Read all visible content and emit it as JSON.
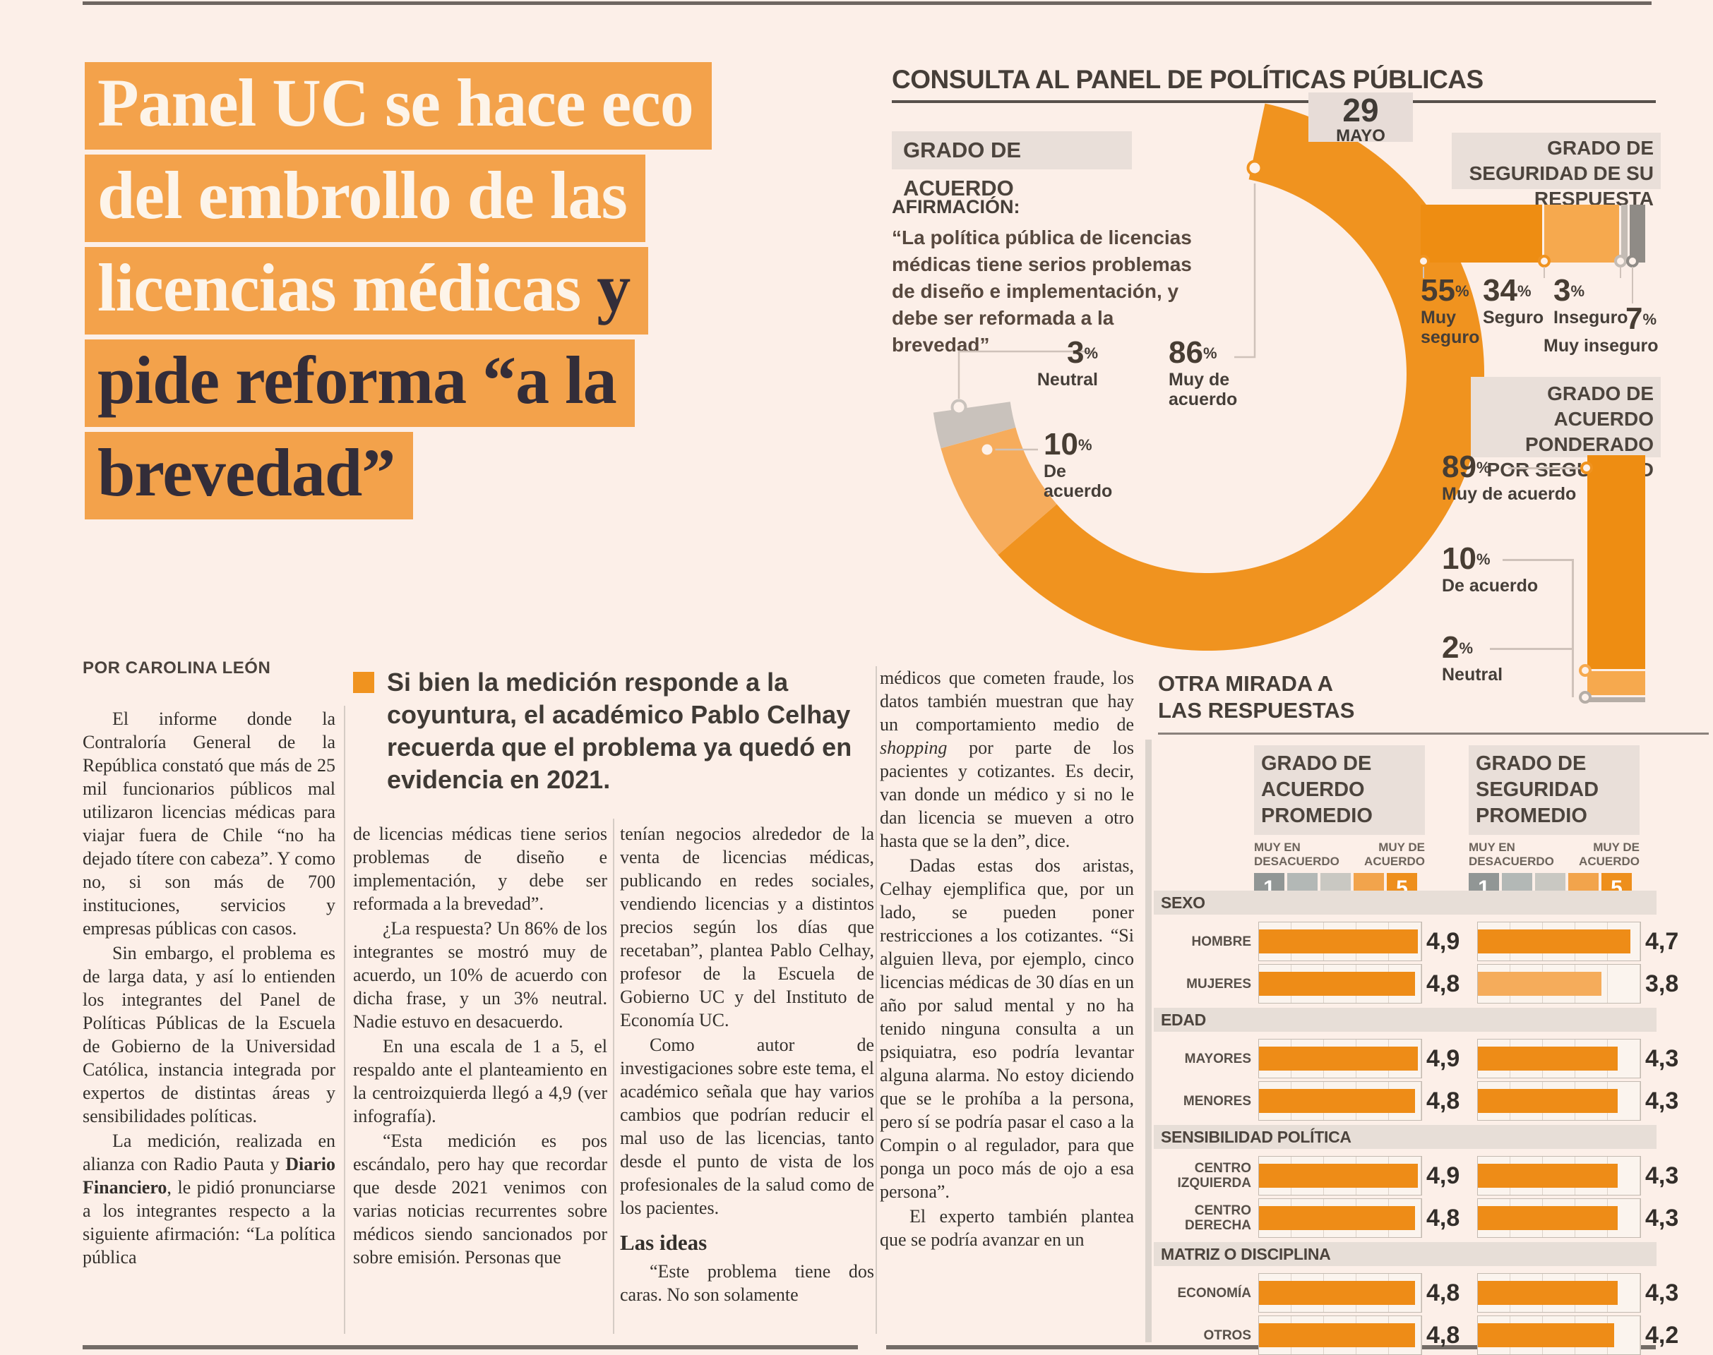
{
  "page": {
    "background": "#fcefe8",
    "accent_orange": "#f3a24b",
    "dark_ink": "#332d39"
  },
  "headline": {
    "l1": "Panel UC se hace eco",
    "l2": "del embrollo de las",
    "l3a": "licencias médicas",
    "l3b": " y",
    "l4": "pide reforma “a la",
    "l5": "brevedad”"
  },
  "byline": "POR CAROLINA LEÓN",
  "standfirst": {
    "text": "Si bien la medición responde a la coyuntura, el académico Pablo Celhay recuerda que el problema ya quedó en evidencia en 2021."
  },
  "article": {
    "col1": {
      "p1": "El informe donde la Contraloría General de la República constató que más de 25 mil funcionarios públicos mal utilizaron licencias médicas para viajar fuera de Chile “no ha dejado títere con cabeza”. Y como no, si son más de 700 instituciones, servicios y empresas públicas con casos.",
      "p2": "Sin embargo, el problema es de larga data, y así lo entienden los integrantes del Panel de Políticas Públicas de la Escuela de Gobierno de la Universidad Católica, instancia integrada por expertos de distintas áreas y sensibilidades políticas.",
      "p3a": "La medición, realizada en alianza con Radio Pauta y ",
      "p3b": "Diario Financiero",
      "p3c": ", le pidió pronunciarse a los integrantes respecto a la siguiente afirmación: “La política pública"
    },
    "col2": {
      "p1": "de licencias médicas tiene serios problemas de diseño e implementación, y debe ser reformada a la brevedad”.",
      "p2": "¿La respuesta? Un 86% de los integrantes se mostró muy de acuerdo, un 10% de acuerdo con dicha frase, y un 3% neutral. Nadie estuvo en desacuerdo.",
      "p3": "En una escala de 1 a 5, el respaldo ante el planteamiento en la centroizquierda llegó a 4,9 (ver infografía).",
      "p4": "“Esta medición es pos escándalo, pero hay que recordar que desde 2021 venimos con varias noticias recurrentes sobre médicos siendo sancionados por sobre emisión. Personas que"
    },
    "col3": {
      "p1": "tenían negocios alrededor de la venta de licencias médicas, publicando en redes sociales, vendiendo licencias y a distintos precios según los días que recetaban”, plantea Pablo Celhay, profesor de la Escuela de Gobierno UC y del Instituto de Economía UC.",
      "p2": "Como autor de investigaciones sobre este tema, el académico señala que hay varios cambios que podrían reducir el mal uso de las licencias, tanto desde el punto de vista de los profesionales de la salud como de los pacientes.",
      "subhead": "Las ideas",
      "p3": "“Este problema tiene dos caras. No son solamente"
    },
    "col4": {
      "p1a": "médicos que cometen fraude, los datos también muestran que hay un comportamiento medio de ",
      "p1b": "shopping",
      "p1c": " por parte de los pacientes y cotizantes. Es decir, van donde un médico y si no le dan licencia se mueven a otro hasta que se la den”, dice.",
      "p2": "Dadas estas dos aristas, Celhay ejemplifica que, por un lado, se pueden poner restricciones a los cotizantes. “Si alguien lleva, por ejemplo, cinco licencias médicas de 30 días en un año por salud mental y no ha tenido ninguna consulta a un psiquiatra, eso podría levantar alguna alarma. No estoy diciendo que se le prohíba a la persona, pero sí se podría pasar el caso a la Compin o al regulador, para que ponga un poco más de ojo a esa persona”.",
      "p3": "El experto también plantea que se podría avanzar en un"
    }
  },
  "infographic": {
    "title": "CONSULTA AL PANEL DE POLÍTICAS PÚBLICAS",
    "date": {
      "day": "29",
      "month": "MAYO"
    },
    "agreement": {
      "header": "GRADO DE ACUERDO",
      "statement_label": "AFIRMACIÓN:",
      "statement": "“La política pública de licencias médicas tiene serios problemas de diseño e implementación, y debe ser reformada a la brevedad”",
      "segments": [
        {
          "num": "86",
          "unit": "%",
          "label": "Muy de acuerdo",
          "value": 86,
          "color": "#f0931f"
        },
        {
          "num": "10",
          "unit": "%",
          "label": "De acuerdo",
          "value": 10,
          "color": "#f6ac5c"
        },
        {
          "num": "3",
          "unit": "%",
          "label": "Neutral",
          "value": 3,
          "color": "#c9c2bc"
        }
      ]
    },
    "security": {
      "header": "GRADO DE SEGURIDAD DE SU RESPUESTA",
      "segments": [
        {
          "num": "55",
          "unit": "%",
          "label": "Muy seguro",
          "value": 55,
          "color": "#ee8d12"
        },
        {
          "num": "34",
          "unit": "%",
          "label": "Seguro",
          "value": 34,
          "color": "#f6a94e"
        },
        {
          "num": "3",
          "unit": "%",
          "label": "Inseguro",
          "value": 3,
          "color": "#c4bcb5"
        },
        {
          "num": "7",
          "unit": "%",
          "label": "Muy inseguro",
          "value": 7,
          "color": "#8f8b86"
        }
      ]
    },
    "weighted": {
      "header": "GRADO DE ACUERDO PONDERADO POR SEGURIDAD",
      "segments": [
        {
          "num": "89",
          "unit": "%",
          "label": "Muy de acuerdo",
          "value": 89,
          "color": "#ee8d12"
        },
        {
          "num": "10",
          "unit": "%",
          "label": "De acuerdo",
          "value": 10,
          "color": "#f6a94e"
        },
        {
          "num": "2",
          "unit": "%",
          "label": "Neutral",
          "value": 2,
          "color": "#b5ada6"
        }
      ]
    },
    "table": {
      "title": "OTRA MIRADA A LAS RESPUESTAS",
      "columns": [
        {
          "header": "GRADO DE ACUERDO PROMEDIO"
        },
        {
          "header": "GRADO DE SEGURIDAD PROMEDIO"
        }
      ],
      "scale": {
        "min_label": "MUY EN DESACUERDO",
        "max_label": "MUY DE ACUERDO",
        "squares": [
          {
            "color": "#919695",
            "label": "1"
          },
          {
            "color": "#b3b8b6"
          },
          {
            "color": "#c9c8c2"
          },
          {
            "color": "#f2a44c"
          },
          {
            "color": "#ee8f1c",
            "label": "5"
          }
        ]
      },
      "sections": [
        {
          "title": "SEXO",
          "rows": [
            {
              "label": "HOMBRE",
              "acuerdo": "4,9",
              "seguridad": "4,7"
            },
            {
              "label": "MUJERES",
              "acuerdo": "4,8",
              "seguridad": "3,8",
              "seguridad_light": true
            }
          ]
        },
        {
          "title": "EDAD",
          "rows": [
            {
              "label": "MAYORES",
              "acuerdo": "4,9",
              "seguridad": "4,3"
            },
            {
              "label": "MENORES",
              "acuerdo": "4,8",
              "seguridad": "4,3"
            }
          ]
        },
        {
          "title": "SENSIBILIDAD POLÍTICA",
          "rows": [
            {
              "label": "CENTRO IZQUIERDA",
              "acuerdo": "4,9",
              "seguridad": "4,3"
            },
            {
              "label": "CENTRO DERECHA",
              "acuerdo": "4,8",
              "seguridad": "4,3"
            }
          ]
        },
        {
          "title": "MATRIZ O DISCIPLINA",
          "rows": [
            {
              "label": "ECONOMÍA",
              "acuerdo": "4,8",
              "seguridad": "4,3"
            },
            {
              "label": "OTROS",
              "acuerdo": "4,8",
              "seguridad": "4,2"
            }
          ]
        }
      ]
    }
  },
  "chart_data": [
    {
      "type": "pie",
      "title": "GRADO DE ACUERDO",
      "date": "29 MAYO",
      "labels": [
        "Muy de acuerdo",
        "De acuerdo",
        "Neutral"
      ],
      "values": [
        86,
        10,
        3
      ],
      "unit": "%"
    },
    {
      "type": "bar",
      "title": "GRADO DE SEGURIDAD DE SU RESPUESTA",
      "subtype": "stacked-horizontal",
      "labels": [
        "Muy seguro",
        "Seguro",
        "Inseguro",
        "Muy inseguro"
      ],
      "values": [
        55,
        34,
        3,
        7
      ],
      "unit": "%"
    },
    {
      "type": "bar",
      "title": "GRADO DE ACUERDO PONDERADO POR SEGURIDAD",
      "subtype": "stacked-vertical",
      "labels": [
        "Muy de acuerdo",
        "De acuerdo",
        "Neutral"
      ],
      "values": [
        89,
        10,
        2
      ],
      "unit": "%"
    },
    {
      "type": "bar",
      "title": "OTRA MIRADA A LAS RESPUESTAS",
      "subtype": "grouped-horizontal",
      "xlim": [
        1,
        5
      ],
      "scale_note": "1 = MUY EN DESACUERDO, 5 = MUY DE ACUERDO",
      "categories": [
        "HOMBRE",
        "MUJERES",
        "MAYORES",
        "MENORES",
        "CENTRO IZQUIERDA",
        "CENTRO DERECHA",
        "ECONOMÍA",
        "OTROS"
      ],
      "series": [
        {
          "name": "GRADO DE ACUERDO PROMEDIO",
          "values": [
            4.9,
            4.8,
            4.9,
            4.8,
            4.9,
            4.8,
            4.8,
            4.8
          ]
        },
        {
          "name": "GRADO DE SEGURIDAD PROMEDIO",
          "values": [
            4.7,
            3.8,
            4.3,
            4.3,
            4.3,
            4.3,
            4.3,
            4.2
          ]
        }
      ]
    }
  ]
}
